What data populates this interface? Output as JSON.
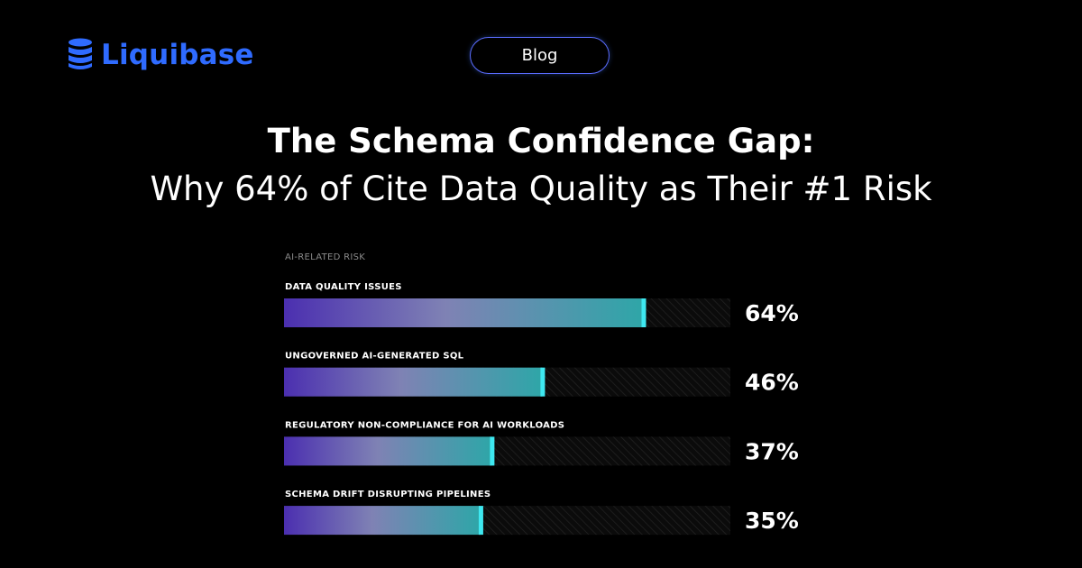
{
  "brand": {
    "name": "Liquibase",
    "color": "#2f6bff"
  },
  "badge": {
    "label": "Blog",
    "border_color": "#5b6cff"
  },
  "headline": {
    "line1": "The Schema Confidence Gap:",
    "line2": "Why 64% of Cite Data Quality as Their #1 Risk"
  },
  "chart_data": {
    "type": "bar",
    "orientation": "horizontal",
    "title": "AI-RELATED RISK",
    "categories": [
      "DATA QUALITY ISSUES",
      "UNGOVERNED AI-GENERATED SQL",
      "REGULATORY NON-COMPLIANCE FOR AI WORKLOADS",
      "SCHEMA DRIFT DISRUPTING PIPELINES"
    ],
    "values": [
      64,
      46,
      37,
      35
    ],
    "value_labels": [
      "64%",
      "46%",
      "37%",
      "35%"
    ],
    "xlim": [
      0,
      100
    ],
    "grid": false,
    "colors": {
      "gradient_start": "#4b2fb0",
      "gradient_mid": "#7f82b4",
      "gradient_end": "#2ea6a8",
      "bar_cap": "#3ee8f0",
      "track": "#141414"
    }
  }
}
